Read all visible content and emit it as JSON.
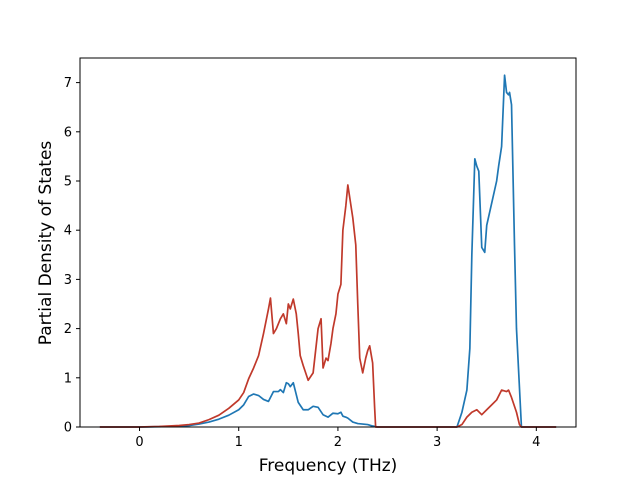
{
  "chart_data": {
    "type": "line",
    "title": "",
    "xlabel": "Frequency (THz)",
    "ylabel": "Partial Density of States",
    "xlim": [
      -0.6,
      4.4
    ],
    "ylim": [
      0,
      7.5
    ],
    "xticks": [
      0,
      1,
      2,
      3,
      4
    ],
    "yticks": [
      0,
      1,
      2,
      3,
      4,
      5,
      6,
      7
    ],
    "grid": false,
    "legend": "none",
    "series": [
      {
        "color": "#1f77b4",
        "x": [
          -0.4,
          0.0,
          0.3,
          0.5,
          0.6,
          0.7,
          0.8,
          0.9,
          1.0,
          1.05,
          1.1,
          1.15,
          1.2,
          1.25,
          1.3,
          1.35,
          1.4,
          1.42,
          1.45,
          1.48,
          1.5,
          1.52,
          1.55,
          1.6,
          1.65,
          1.7,
          1.75,
          1.8,
          1.85,
          1.9,
          1.95,
          2.0,
          2.03,
          2.05,
          2.08,
          2.1,
          2.15,
          2.2,
          2.25,
          2.3,
          2.35,
          2.4,
          2.5,
          3.0,
          3.2,
          3.25,
          3.3,
          3.33,
          3.35,
          3.38,
          3.4,
          3.42,
          3.45,
          3.48,
          3.5,
          3.55,
          3.6,
          3.62,
          3.65,
          3.68,
          3.7,
          3.72,
          3.73,
          3.75,
          3.78,
          3.8,
          3.85,
          4.2
        ],
        "y": [
          0,
          0,
          0.01,
          0.03,
          0.06,
          0.1,
          0.16,
          0.24,
          0.35,
          0.45,
          0.62,
          0.67,
          0.64,
          0.56,
          0.52,
          0.72,
          0.72,
          0.76,
          0.7,
          0.9,
          0.88,
          0.82,
          0.9,
          0.5,
          0.35,
          0.35,
          0.42,
          0.4,
          0.25,
          0.2,
          0.28,
          0.27,
          0.3,
          0.22,
          0.2,
          0.18,
          0.1,
          0.07,
          0.06,
          0.05,
          0.02,
          0,
          0,
          0,
          0,
          0.3,
          0.75,
          1.6,
          3.5,
          5.45,
          5.3,
          5.2,
          3.65,
          3.55,
          4.1,
          4.55,
          5.0,
          5.3,
          5.7,
          7.15,
          6.8,
          6.75,
          6.8,
          6.55,
          3.7,
          2.0,
          0,
          0
        ]
      },
      {
        "color": "#c0392b",
        "x": [
          -0.4,
          0.0,
          0.2,
          0.4,
          0.5,
          0.6,
          0.7,
          0.8,
          0.9,
          1.0,
          1.05,
          1.1,
          1.15,
          1.2,
          1.25,
          1.3,
          1.32,
          1.35,
          1.38,
          1.42,
          1.45,
          1.48,
          1.5,
          1.52,
          1.55,
          1.58,
          1.6,
          1.62,
          1.65,
          1.7,
          1.75,
          1.8,
          1.83,
          1.85,
          1.88,
          1.9,
          1.93,
          1.95,
          1.98,
          2.0,
          2.03,
          2.05,
          2.08,
          2.1,
          2.15,
          2.18,
          2.2,
          2.22,
          2.25,
          2.28,
          2.3,
          2.32,
          2.35,
          2.37,
          2.38,
          2.4,
          2.5,
          3.2,
          3.25,
          3.3,
          3.35,
          3.4,
          3.45,
          3.5,
          3.55,
          3.6,
          3.65,
          3.7,
          3.72,
          3.75,
          3.8,
          3.83,
          3.85,
          4.2
        ],
        "y": [
          0,
          0,
          0.01,
          0.03,
          0.05,
          0.08,
          0.15,
          0.24,
          0.38,
          0.55,
          0.7,
          0.98,
          1.2,
          1.45,
          1.9,
          2.4,
          2.62,
          1.9,
          2.0,
          2.2,
          2.3,
          2.1,
          2.5,
          2.4,
          2.6,
          2.3,
          1.9,
          1.45,
          1.25,
          0.95,
          1.1,
          2.0,
          2.2,
          1.2,
          1.4,
          1.35,
          1.7,
          2.0,
          2.3,
          2.7,
          2.9,
          4.0,
          4.5,
          4.92,
          4.25,
          3.7,
          2.5,
          1.4,
          1.1,
          1.4,
          1.55,
          1.65,
          1.3,
          0.4,
          0,
          0,
          0,
          0,
          0.05,
          0.2,
          0.3,
          0.35,
          0.25,
          0.35,
          0.45,
          0.55,
          0.75,
          0.72,
          0.75,
          0.6,
          0.3,
          0.05,
          0,
          0
        ]
      }
    ]
  }
}
